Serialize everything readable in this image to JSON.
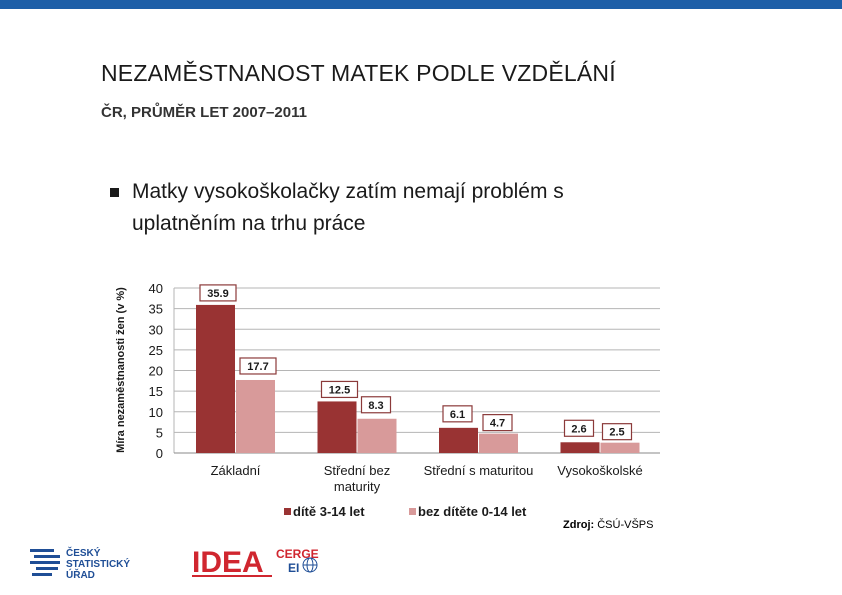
{
  "slide": {
    "title": "NEZAMĚSTNANOST MATEK PODLE VZDĚLÁNÍ",
    "subtitle": "ČR, PRŮMĚR LET 2007–2011",
    "bullet_lines": [
      "Matky vysokoškolačky zatím nemají problém s",
      "uplatněním na trhu práce"
    ],
    "source_label": "Zdroj:",
    "source_value": "ČSÚ-VŠPS",
    "logos": {
      "csu": [
        "ČESKÝ",
        "STATISTICKÝ",
        "ÚŘAD"
      ],
      "idea": "IDEA",
      "cerge_top": "CERGE",
      "cerge_bottom": "EI"
    },
    "colors": {
      "topbar": "#1e5fa8",
      "series1": "#993333",
      "series2": "#d89a9a",
      "csu_blue": "#1f4e96",
      "idea_red": "#d0262f"
    }
  },
  "chart_data": {
    "type": "bar",
    "ylabel": "Míra nezaměstnanosti žen (v %)",
    "ylim": [
      0,
      40
    ],
    "yticks": [
      0,
      5,
      10,
      15,
      20,
      25,
      30,
      35,
      40
    ],
    "grid": true,
    "legend_position": "bottom",
    "categories": [
      "Základní",
      "Střední bez maturity",
      "Střední s maturitou",
      "Vysokoškolské"
    ],
    "category_label_lines": [
      [
        "Základní"
      ],
      [
        "Střední bez",
        "maturity"
      ],
      [
        "Střední s maturitou"
      ],
      [
        "Vysokoškolské"
      ]
    ],
    "series": [
      {
        "name": "dítě 3-14 let",
        "values": [
          35.9,
          12.5,
          6.1,
          2.6
        ]
      },
      {
        "name": "bez dítěte 0-14 let",
        "values": [
          17.7,
          8.3,
          4.7,
          2.5
        ]
      }
    ]
  }
}
